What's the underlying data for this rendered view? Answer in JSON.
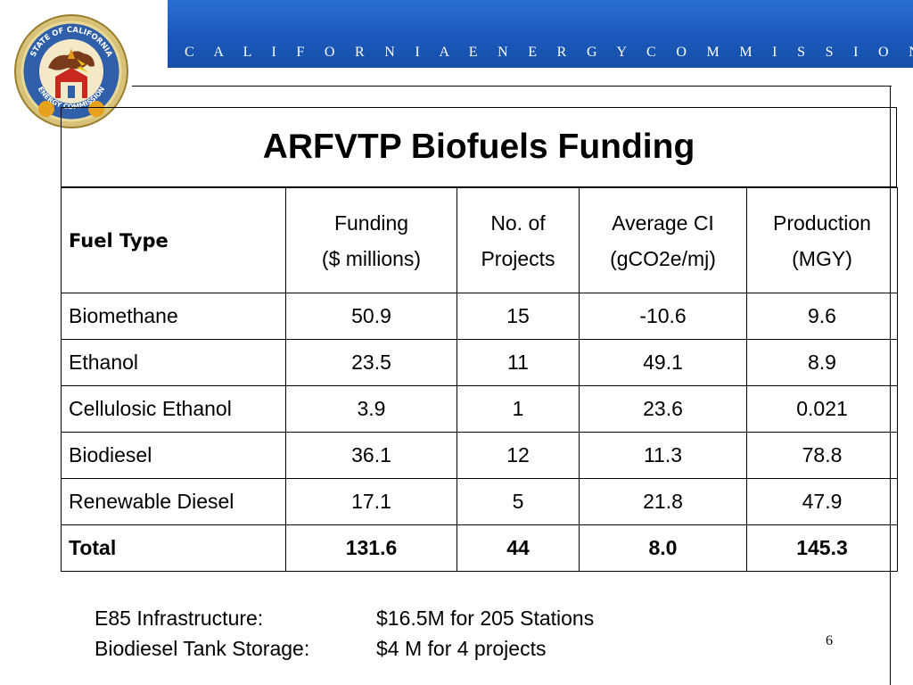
{
  "header": {
    "org": "C A L I F O R N I A   E N E R G Y   C O M M I S S I O N",
    "seal_top_text": "STATE OF CALIFORNIA",
    "seal_bottom_text": "ENERGY COMMISSION"
  },
  "title": "ARFVTP Biofuels Funding",
  "table": {
    "headers": {
      "fuel_type": "Fuel Type",
      "funding_l1": "Funding",
      "funding_l2": "($ millions)",
      "projects_l1": "No. of",
      "projects_l2": "Projects",
      "ci_l1": "Average CI",
      "ci_l2": "(gCO2e/mj)",
      "production_l1": "Production",
      "production_l2": "(MGY)"
    },
    "rows": [
      {
        "fuel": "Biomethane",
        "funding": "50.9",
        "projects": "15",
        "ci": "-10.6",
        "production": "9.6"
      },
      {
        "fuel": "Ethanol",
        "funding": "23.5",
        "projects": "11",
        "ci": "49.1",
        "production": "8.9"
      },
      {
        "fuel": "Cellulosic Ethanol",
        "funding": "3.9",
        "projects": "1",
        "ci": "23.6",
        "production": "0.021"
      },
      {
        "fuel": "Biodiesel",
        "funding": "36.1",
        "projects": "12",
        "ci": "11.3",
        "production": "78.8"
      },
      {
        "fuel": "Renewable Diesel",
        "funding": "17.1",
        "projects": "5",
        "ci": "21.8",
        "production": "47.9"
      }
    ],
    "total": {
      "fuel": "Total",
      "funding": "131.6",
      "projects": "44",
      "ci": "8.0",
      "production": "145.3"
    }
  },
  "footer": {
    "line1_label": "E85 Infrastructure:",
    "line1_value": "$16.5M for 205 Stations",
    "line2_label": "Biodiesel Tank Storage:",
    "line2_value": "$4 M for 4 projects"
  },
  "page_number": "6",
  "colors": {
    "header_bar": "#1b58bb",
    "seal_outer": "#c9a94a",
    "seal_blue": "#2f5fa8",
    "seal_red": "#c8281e"
  }
}
